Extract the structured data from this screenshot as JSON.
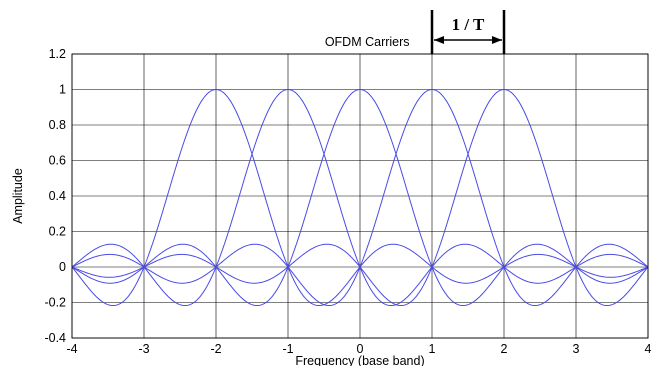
{
  "chart_data": {
    "type": "line",
    "title": "OFDM Carriers",
    "annotation": "1 / T",
    "annotation_span": [
      1,
      2
    ],
    "xlabel": "Frequency (base band)",
    "ylabel": "Amplitude",
    "xlim": [
      -4,
      4
    ],
    "ylim": [
      -0.4,
      1.2
    ],
    "x_ticks": [
      -4,
      -3,
      -2,
      -1,
      0,
      1,
      2,
      3,
      4
    ],
    "x_tick_labels": [
      "-4",
      "-3",
      "-2",
      "-1",
      "0",
      "1",
      "2",
      "3",
      "4"
    ],
    "y_ticks": [
      -0.4,
      -0.2,
      0,
      0.2,
      0.4,
      0.6,
      0.8,
      1,
      1.2
    ],
    "y_tick_labels": [
      "-0.4",
      "-0.2",
      "0",
      "0.2",
      "0.4",
      "0.6",
      "0.8",
      "1",
      "1.2"
    ],
    "grid": true,
    "line_color": "#4a4ae6",
    "function": "sinc",
    "carrier_centers": [
      -2,
      -1,
      0,
      1,
      2
    ],
    "series": [
      {
        "center": -2,
        "x": [
          -4,
          -3.5,
          -3,
          -2.5,
          -2,
          -1.5,
          -1,
          -0.5,
          0,
          0.5,
          1,
          1.5,
          2,
          2.5,
          3,
          3.5,
          4
        ],
        "values": [
          0,
          0.128,
          0,
          -0.212,
          1,
          0.637,
          0,
          -0.212,
          0,
          0.127,
          0,
          -0.091,
          0,
          0.071,
          0,
          -0.058,
          0
        ]
      },
      {
        "center": -1,
        "x": [
          -4,
          -3.5,
          -3,
          -2.5,
          -2,
          -1.5,
          -1,
          -0.5,
          0,
          0.5,
          1,
          1.5,
          2,
          2.5,
          3,
          3.5,
          4
        ],
        "values": [
          0,
          -0.212,
          0,
          0.637,
          0,
          0.637,
          1,
          0.637,
          0,
          -0.212,
          0,
          0.127,
          0,
          -0.091,
          0,
          0.071,
          0
        ]
      },
      {
        "center": 0,
        "x": [
          -4,
          -3.5,
          -3,
          -2.5,
          -2,
          -1.5,
          -1,
          -0.5,
          0,
          0.5,
          1,
          1.5,
          2,
          2.5,
          3,
          3.5,
          4
        ],
        "values": [
          0,
          -0.091,
          0,
          0.127,
          0,
          -0.212,
          0,
          0.637,
          1,
          0.637,
          0,
          -0.212,
          0,
          0.127,
          0,
          -0.091,
          0
        ]
      },
      {
        "center": 1,
        "x": [
          -4,
          -3.5,
          -3,
          -2.5,
          -2,
          -1.5,
          -1,
          -0.5,
          0,
          0.5,
          1,
          1.5,
          2,
          2.5,
          3,
          3.5,
          4
        ],
        "values": [
          0,
          0.071,
          0,
          -0.091,
          0,
          0.127,
          0,
          -0.212,
          0,
          0.637,
          1,
          0.637,
          0,
          -0.212,
          0,
          0.127,
          0
        ]
      },
      {
        "center": 2,
        "x": [
          -4,
          -3.5,
          -3,
          -2.5,
          -2,
          -1.5,
          -1,
          -0.5,
          0,
          0.5,
          1,
          1.5,
          2,
          2.5,
          3,
          3.5,
          4
        ],
        "values": [
          0,
          -0.058,
          0,
          0.071,
          0,
          -0.091,
          0,
          0.127,
          0,
          -0.212,
          0,
          0.637,
          1,
          0.637,
          0,
          -0.212,
          0
        ]
      }
    ]
  }
}
